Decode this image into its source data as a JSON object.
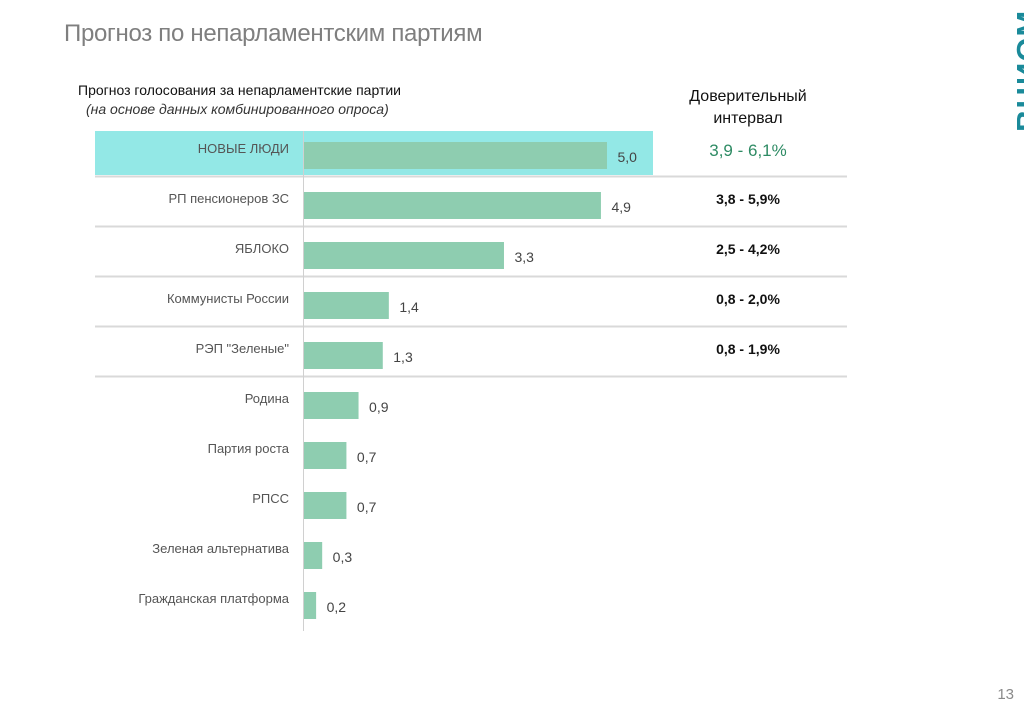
{
  "slide": {
    "title": "Прогноз по непарламентским партиям",
    "logo_text": "ВЦИОМ",
    "page_number": "13"
  },
  "colors": {
    "bar": "#8ecdb0",
    "highlight": "#93e8e6",
    "ci_highlight_text": "#2e8b64",
    "logo": "#1a8a9a"
  },
  "chart_data": {
    "type": "bar",
    "orientation": "horizontal",
    "title": "Прогноз голосования за непарламентские партии",
    "subtitle": "(на основе данных комбинированного опроса)",
    "xlabel": "",
    "ylabel": "",
    "xlim": [
      0,
      5.0
    ],
    "grid": false,
    "highlighted_category": "НОВЫЕ ЛЮДИ",
    "categories": [
      "НОВЫЕ ЛЮДИ",
      "РП пенсионеров ЗС",
      "ЯБЛОКО",
      "Коммунисты России",
      "РЭП \"Зеленые\"",
      "Родина",
      "Партия роста",
      "РПСС",
      "Зеленая альтернатива",
      "Гражданская платформа"
    ],
    "values": [
      5.0,
      4.9,
      3.3,
      1.4,
      1.3,
      0.9,
      0.7,
      0.7,
      0.3,
      0.2
    ],
    "value_labels": [
      "5,0",
      "4,9",
      "3,3",
      "1,4",
      "1,3",
      "0,9",
      "0,7",
      "0,7",
      "0,3",
      "0,2"
    ],
    "confidence_interval_header": "Доверительный интервал",
    "confidence_intervals": [
      "3,9 - 6,1%",
      "3,8 - 5,9%",
      "2,5 - 4,2%",
      "0,8 - 2,0%",
      "0,8 - 1,9%"
    ]
  }
}
